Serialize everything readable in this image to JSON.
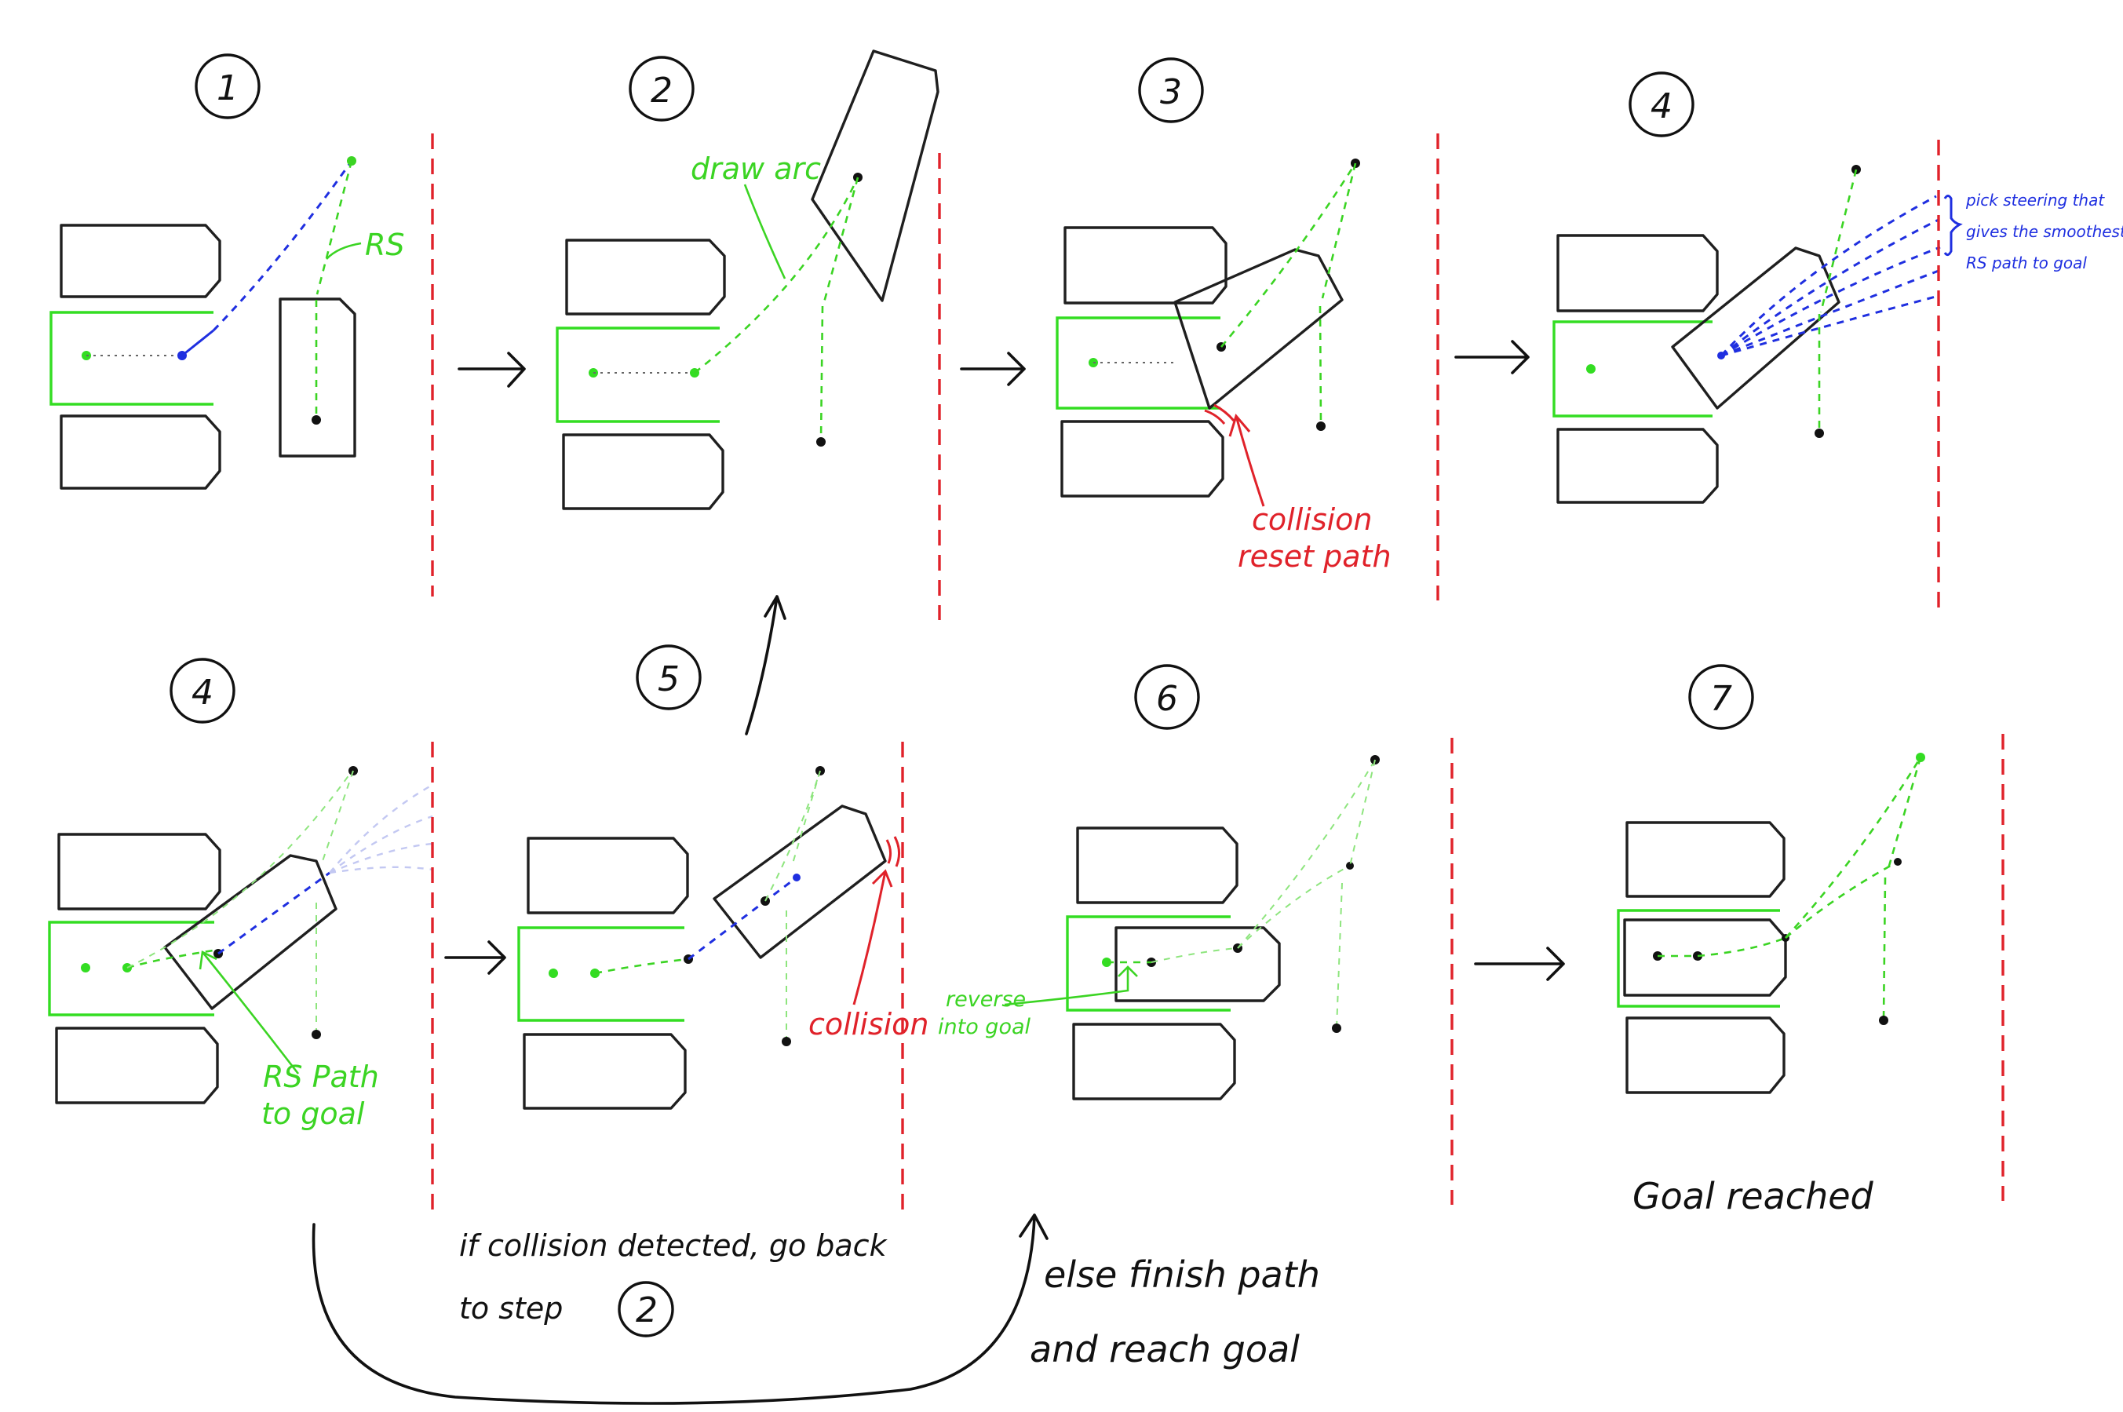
{
  "steps": [
    {
      "id": "s1",
      "number": "1"
    },
    {
      "id": "s2",
      "number": "2"
    },
    {
      "id": "s3",
      "number": "3"
    },
    {
      "id": "s4a",
      "number": "4"
    },
    {
      "id": "s4b",
      "number": "4"
    },
    {
      "id": "s5",
      "number": "5"
    },
    {
      "id": "s6",
      "number": "6"
    },
    {
      "id": "s7",
      "number": "7"
    }
  ],
  "labels": {
    "rs": "RS",
    "draw_arc": "draw arc",
    "collision_reset_line1": "collision",
    "collision_reset_line2": "reset path",
    "pick_steering_line1": "pick steering that",
    "pick_steering_line2": "gives the smoothest",
    "pick_steering_line3": "RS path to goal",
    "rs_path_line1": "RS Path",
    "rs_path_line2": "to goal",
    "collision": "collision",
    "reverse_line1": "reverse",
    "reverse_line2": "into goal",
    "goal_reached": "Goal reached",
    "if_collision_line1": "if collision detected, go back",
    "if_collision_line2": "to step",
    "if_collision_step": "2",
    "else_line1": "else finish path",
    "else_line2": "and reach goal"
  },
  "colors": {
    "ink": "#111111",
    "goal_green": "#33dd22",
    "path_green": "#3bd423",
    "rs_blue": "#1f2fe0",
    "wall_red": "#e0222a"
  }
}
